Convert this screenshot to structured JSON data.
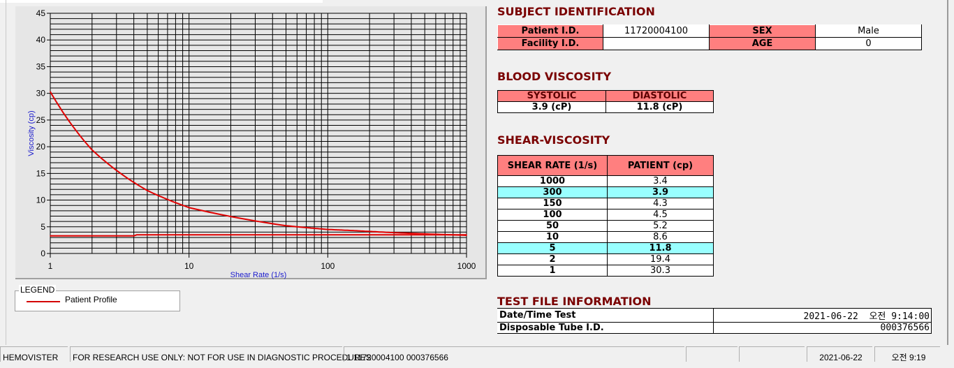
{
  "chart_data": {
    "type": "line",
    "xlabel": "Shear Rate (1/s)",
    "ylabel": "Viscosity (cp)",
    "xscale": "log",
    "xlim": [
      1,
      1000
    ],
    "ylim": [
      0,
      45
    ],
    "xticks": [
      "1",
      "10",
      "100",
      "1000"
    ],
    "yticks": [
      "0",
      "5",
      "10",
      "15",
      "20",
      "25",
      "30",
      "35",
      "40",
      "45"
    ],
    "grid": true,
    "series": [
      {
        "x": [
          1,
          2,
          5,
          10,
          50,
          100,
          150,
          300,
          1000
        ],
        "y": [
          30.3,
          19.4,
          11.8,
          8.6,
          5.2,
          4.5,
          4.3,
          3.9,
          3.4
        ],
        "color": "#e00000"
      },
      {
        "x": [
          1,
          4,
          4.2,
          1000
        ],
        "y": [
          3.3,
          3.3,
          3.5,
          3.5
        ],
        "color": "#e00000"
      }
    ],
    "legend": {
      "title": "LEGEND",
      "entries": [
        "Patient Profile"
      ],
      "placement": "below"
    }
  },
  "subject": {
    "title": "SUBJECT IDENTIFICATION",
    "patient_id_label": "Patient I.D.",
    "patient_id": "11720004100",
    "sex_label": "SEX",
    "sex": "Male",
    "facility_id_label": "Facility I.D.",
    "facility_id": "",
    "age_label": "AGE",
    "age": "0"
  },
  "blood": {
    "title": "BLOOD VISCOSITY",
    "systolic_label": "SYSTOLIC",
    "diastolic_label": "DIASTOLIC",
    "systolic": "3.9 (cP)",
    "diastolic": "11.8 (cP)"
  },
  "shear": {
    "title": "SHEAR-VISCOSITY",
    "col1": "SHEAR RATE (1/s)",
    "col2": "PATIENT (cp)",
    "highlight_color": "#99ffff",
    "rows": [
      {
        "rate": "1000",
        "value": "3.4",
        "hl": false
      },
      {
        "rate": "300",
        "value": "3.9",
        "hl": true
      },
      {
        "rate": "150",
        "value": "4.3",
        "hl": false
      },
      {
        "rate": "100",
        "value": "4.5",
        "hl": false
      },
      {
        "rate": "50",
        "value": "5.2",
        "hl": false
      },
      {
        "rate": "10",
        "value": "8.6",
        "hl": false
      },
      {
        "rate": "5",
        "value": "11.8",
        "hl": true
      },
      {
        "rate": "2",
        "value": "19.4",
        "hl": false
      },
      {
        "rate": "1",
        "value": "30.3",
        "hl": false
      }
    ]
  },
  "testfile": {
    "title": "TEST FILE INFORMATION",
    "date_label": "Date/Time Test",
    "date": "2021-06-22  오전 9:14:00",
    "tube_label": "Disposable Tube I.D.",
    "tube": "000376566"
  },
  "status": {
    "app": "HEMOVISTER",
    "notice": "FOR RESEARCH USE ONLY: NOT FOR USE IN DIAGNOSTIC PROCEDURES",
    "record": "1  11720004100  000376566",
    "blank1": "",
    "blank2": "",
    "date": "2021-06-22",
    "time": "오전 9:19"
  }
}
